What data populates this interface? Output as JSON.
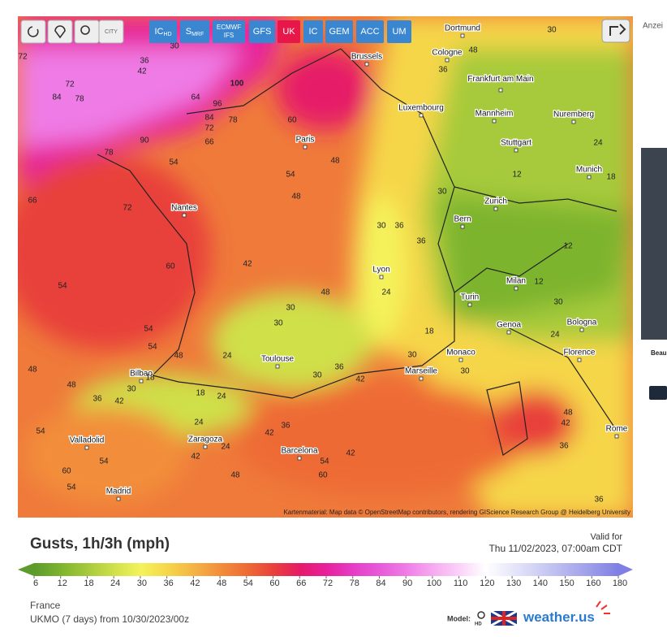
{
  "toolbar": {
    "city": "CITY",
    "models": [
      {
        "main": "IC",
        "sub": "HD"
      },
      {
        "main": "S",
        "sub": "MRF"
      },
      {
        "main": "ECMWF",
        "sub": "IFS"
      },
      {
        "main": "GFS"
      },
      {
        "main": "UK"
      },
      {
        "main": "IC"
      },
      {
        "main": "GEM"
      },
      {
        "main": "ACC"
      },
      {
        "main": "UM"
      }
    ]
  },
  "map": {
    "cities": [
      "Dortmund",
      "Brussels",
      "Cologne",
      "Frankfurt am Main",
      "Luxembourg",
      "Mannheim",
      "Nuremberg",
      "Paris",
      "Stuttgart",
      "Munich",
      "Nantes",
      "Zurich",
      "Bern",
      "Lyon",
      "Milan",
      "Turin",
      "Genoa",
      "Bologna",
      "Monaco",
      "Florence",
      "Toulouse",
      "Marseille",
      "Bilbao",
      "Valladolid",
      "Zaragoza",
      "Barcelona",
      "Madrid",
      "Rome"
    ],
    "values": [
      30,
      36,
      42,
      72,
      100,
      64,
      96,
      84,
      78,
      72,
      66,
      60,
      90,
      78,
      54,
      54,
      48,
      48,
      66,
      72,
      60,
      42,
      30,
      36,
      36,
      54,
      48,
      30,
      24,
      30,
      54,
      54,
      48,
      24,
      30,
      36,
      42,
      30,
      30,
      18,
      24,
      30,
      12,
      12,
      12,
      24,
      18,
      30,
      30,
      48,
      36,
      48,
      48,
      36,
      42,
      30,
      54,
      18,
      24,
      36,
      42,
      60,
      54,
      54,
      42,
      48,
      54,
      60,
      42,
      48,
      42,
      36,
      36,
      72,
      84,
      78,
      24,
      24,
      18
    ],
    "attribution": "Kartenmaterial: Map data © OpenStreetMap contributors, rendering GIScience Research Group @ Heidelberg University"
  },
  "title": "Gusts, 1h/3h (mph)",
  "valid_label": "Valid for",
  "valid_time": "Thu 11/02/2023, 07:00am CDT",
  "legend": {
    "ticks": [
      6,
      12,
      18,
      24,
      30,
      36,
      42,
      48,
      54,
      60,
      66,
      72,
      78,
      84,
      90,
      100,
      110,
      120,
      130,
      140,
      150,
      160,
      180
    ],
    "colors": [
      "#5c9b2c",
      "#7db42f",
      "#a6ca3b",
      "#cfe04a",
      "#f4f35b",
      "#f6d64a",
      "#f5b444",
      "#f28e3b",
      "#ee6b36",
      "#e8413a",
      "#e61a68",
      "#e7209c",
      "#e63cc7",
      "#e75ad9",
      "#ef7ce6",
      "#f6a9f0",
      "#fad2f8",
      "#ffffff",
      "#e7e7fa",
      "#cfcff4",
      "#b5b5ef",
      "#9b9bea",
      "#7f7fe4"
    ]
  },
  "region": "France",
  "run": "UKMO (7 days) from 10/30/2023/00z",
  "model_label": "Model:",
  "hd": "HD",
  "brand": {
    "main": "weather.",
    "tld": "us"
  },
  "ad": {
    "label": "Anzei",
    "headline": "Beau"
  }
}
